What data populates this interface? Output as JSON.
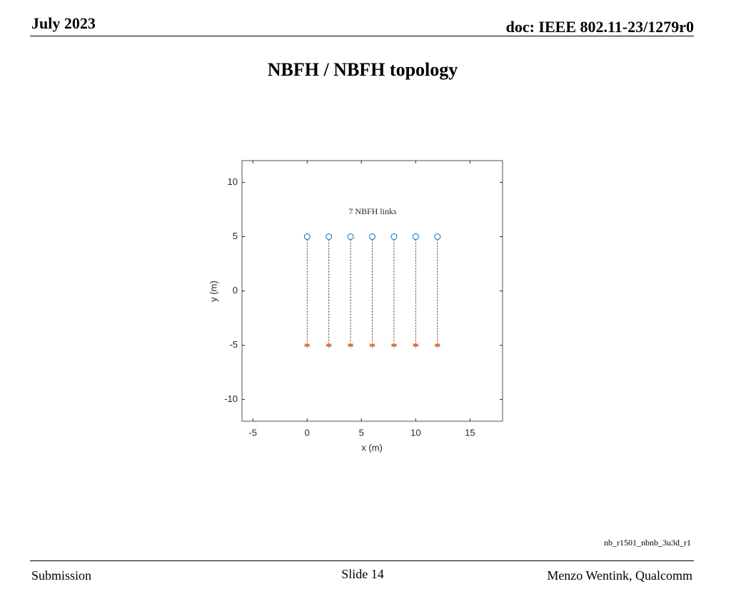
{
  "header": {
    "date": "July 2023",
    "doc": "doc: IEEE 802.11-23/1279r0"
  },
  "title": "NBFH / NBFH topology",
  "chart_data": {
    "type": "scatter",
    "annotation": "7 NBFH links",
    "xlabel": "x (m)",
    "ylabel": "y (m)",
    "xlim": [
      -6,
      18
    ],
    "ylim": [
      -12,
      12
    ],
    "xticks": [
      -5,
      0,
      5,
      10,
      15
    ],
    "yticks": [
      -10,
      -5,
      0,
      5,
      10
    ],
    "links": true,
    "series": [
      {
        "marker": "circle",
        "color": "#0072bd",
        "x": [
          0,
          2,
          4,
          6,
          8,
          10,
          12
        ],
        "values": [
          5,
          5,
          5,
          5,
          5,
          5,
          5
        ]
      },
      {
        "marker": "star",
        "color": "#d95319",
        "x": [
          0,
          2,
          4,
          6,
          8,
          10,
          12
        ],
        "values": [
          -5,
          -5,
          -5,
          -5,
          -5,
          -5,
          -5
        ]
      }
    ]
  },
  "note": "nb_r1501_nbnb_3u3d_r1",
  "footer": {
    "left": "Submission",
    "center": "Slide 14",
    "right": "Menzo Wentink, Qualcomm"
  }
}
